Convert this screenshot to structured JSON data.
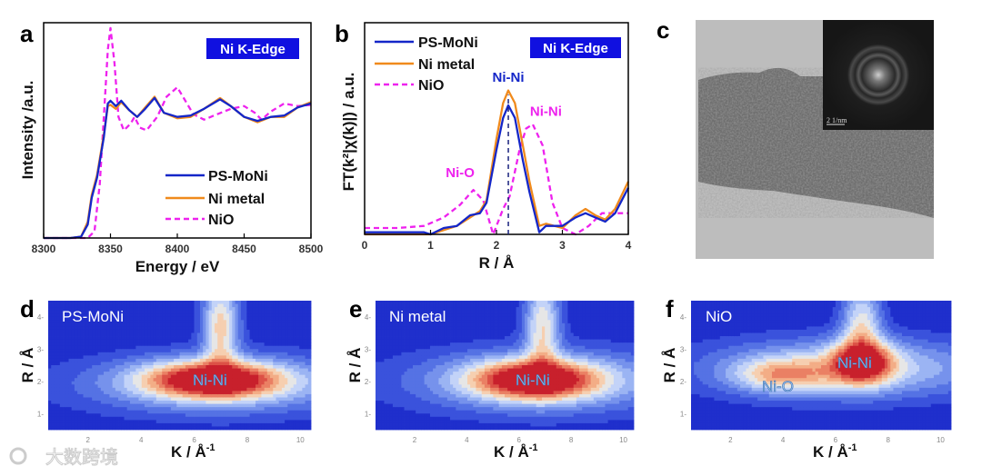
{
  "colors": {
    "ps_moni": "#1426c8",
    "ni_metal": "#f08a1c",
    "nio": "#ee22ee",
    "badge": "#1010e0"
  },
  "panels": {
    "a": "a",
    "b": "b",
    "c": "c",
    "d": "d",
    "e": "e",
    "f": "f"
  },
  "chart_data": [
    {
      "id": "a",
      "type": "line",
      "title": "Ni K-Edge",
      "xlabel": "Energy / eV",
      "ylabel": "Intensity /a.u.",
      "xlim": [
        8300,
        8500
      ],
      "ylim": [
        0,
        1.6
      ],
      "xticks": [
        "8300",
        "8350",
        "8400",
        "8450",
        "8500"
      ],
      "legend_position": "bottom-right",
      "series": [
        {
          "name": "PS-MoNi",
          "style": "solid",
          "x": [
            8300,
            8320,
            8328,
            8333,
            8336,
            8340,
            8345,
            8348,
            8350,
            8354,
            8358,
            8364,
            8370,
            8376,
            8383,
            8390,
            8400,
            8410,
            8420,
            8432,
            8440,
            8450,
            8460,
            8470,
            8480,
            8490,
            8500
          ],
          "y": [
            0,
            0,
            0.01,
            0.1,
            0.3,
            0.45,
            0.75,
            1.0,
            1.02,
            0.98,
            1.02,
            0.95,
            0.9,
            0.96,
            1.04,
            0.93,
            0.9,
            0.91,
            0.96,
            1.03,
            0.98,
            0.9,
            0.87,
            0.9,
            0.91,
            0.97,
            1.0
          ]
        },
        {
          "name": "Ni metal",
          "style": "solid",
          "x": [
            8300,
            8320,
            8328,
            8333,
            8336,
            8340,
            8345,
            8348,
            8350,
            8354,
            8358,
            8364,
            8370,
            8376,
            8383,
            8390,
            8400,
            8410,
            8420,
            8432,
            8440,
            8450,
            8460,
            8470,
            8480,
            8490,
            8500
          ],
          "y": [
            0,
            0,
            0.01,
            0.12,
            0.32,
            0.47,
            0.77,
            0.98,
            0.99,
            0.96,
            1.01,
            0.95,
            0.9,
            0.97,
            1.05,
            0.93,
            0.89,
            0.9,
            0.96,
            1.04,
            0.98,
            0.9,
            0.86,
            0.9,
            0.9,
            0.97,
            1.01
          ]
        },
        {
          "name": "NiO",
          "style": "dashed",
          "x": [
            8300,
            8333,
            8338,
            8342,
            8345,
            8348,
            8350,
            8353,
            8356,
            8360,
            8365,
            8368,
            8372,
            8377,
            8385,
            8392,
            8400,
            8406,
            8412,
            8420,
            8430,
            8440,
            8450,
            8458,
            8463,
            8470,
            8480,
            8490,
            8500
          ],
          "y": [
            0,
            0,
            0.05,
            0.4,
            0.9,
            1.4,
            1.56,
            1.3,
            0.9,
            0.8,
            0.85,
            0.9,
            0.82,
            0.8,
            0.9,
            1.05,
            1.12,
            1.02,
            0.92,
            0.88,
            0.92,
            0.96,
            0.98,
            0.93,
            0.88,
            0.94,
            1.0,
            0.98,
            0.99
          ]
        }
      ]
    },
    {
      "id": "b",
      "type": "line",
      "title": "Ni K-Edge",
      "xlabel": "R / Å",
      "ylabel": "FT(k²|χ(k)|) / a.u.",
      "xlim": [
        0,
        4
      ],
      "ylim": [
        0,
        1.0
      ],
      "xticks": [
        "0",
        "1",
        "2",
        "3",
        "4"
      ],
      "legend_position": "top-left",
      "annotations": [
        {
          "text": "Ni-Ni",
          "color": "#1426c8",
          "x": 2.18,
          "y": 0.72
        },
        {
          "text": "Ni-Ni",
          "color": "#ee22ee",
          "x": 2.75,
          "y": 0.56
        },
        {
          "text": "Ni-O",
          "color": "#ee22ee",
          "x": 1.45,
          "y": 0.27
        }
      ],
      "reference_line_x": 2.18,
      "series": [
        {
          "name": "PS-MoNi",
          "style": "solid",
          "x": [
            0,
            0.5,
            0.9,
            1.0,
            1.2,
            1.4,
            1.6,
            1.75,
            1.85,
            2.0,
            2.1,
            2.18,
            2.28,
            2.4,
            2.5,
            2.65,
            2.75,
            3.0,
            3.2,
            3.35,
            3.5,
            3.65,
            3.8,
            4.0
          ],
          "y": [
            0.01,
            0.01,
            0.01,
            0.0,
            0.03,
            0.04,
            0.09,
            0.1,
            0.15,
            0.4,
            0.55,
            0.61,
            0.55,
            0.35,
            0.2,
            0.01,
            0.04,
            0.04,
            0.08,
            0.1,
            0.08,
            0.06,
            0.1,
            0.22
          ]
        },
        {
          "name": "Ni metal",
          "style": "solid",
          "x": [
            0,
            0.5,
            0.9,
            1.0,
            1.2,
            1.4,
            1.6,
            1.75,
            1.85,
            2.0,
            2.1,
            2.18,
            2.28,
            2.4,
            2.5,
            2.65,
            2.75,
            3.0,
            3.2,
            3.35,
            3.5,
            3.65,
            3.8,
            4.0
          ],
          "y": [
            0.0,
            0.0,
            0.0,
            0.0,
            0.02,
            0.04,
            0.08,
            0.11,
            0.16,
            0.45,
            0.62,
            0.68,
            0.62,
            0.42,
            0.25,
            0.04,
            0.05,
            0.03,
            0.09,
            0.12,
            0.09,
            0.07,
            0.12,
            0.25
          ]
        },
        {
          "name": "NiO",
          "style": "dashed",
          "x": [
            0,
            0.5,
            0.9,
            1.2,
            1.45,
            1.65,
            1.8,
            1.95,
            2.1,
            2.2,
            2.35,
            2.45,
            2.55,
            2.7,
            2.85,
            3.0,
            3.2,
            3.4,
            3.6,
            3.8,
            4.0
          ],
          "y": [
            0.03,
            0.03,
            0.04,
            0.08,
            0.14,
            0.21,
            0.16,
            0.0,
            0.12,
            0.18,
            0.4,
            0.5,
            0.52,
            0.42,
            0.15,
            0.03,
            0.0,
            0.04,
            0.1,
            0.1,
            0.1
          ]
        }
      ]
    },
    {
      "id": "c",
      "type": "image",
      "inset_scale_bar": "2 1/nm"
    },
    {
      "id": "d",
      "type": "heatmap",
      "title": "PS-MoNi",
      "xlabel": "K / Å",
      "xlabel_sup": "-1",
      "ylabel": "R / Å",
      "xlim": [
        0.5,
        10.4
      ],
      "ylim": [
        0.5,
        4.5
      ],
      "xticks": [
        "2",
        "4",
        "6",
        "8",
        "10"
      ],
      "yticks": [
        "1",
        "2",
        "3",
        "4"
      ],
      "peak_labels": [
        "Ni-Ni"
      ],
      "features": [
        {
          "label": "Ni-Ni",
          "k": 6.7,
          "r": 2.05,
          "amplitude": 1.0,
          "k_width": 1.7,
          "r_width": 0.38
        },
        {
          "label": "ridge",
          "k": 7.0,
          "r": 3.7,
          "amplitude": 0.55,
          "k_width": 0.45,
          "r_width": 1.0
        },
        {
          "label": "band",
          "k": 7.0,
          "r": 1.9,
          "amplitude": 0.35,
          "k_width": 3.5,
          "r_width": 0.6
        }
      ]
    },
    {
      "id": "e",
      "type": "heatmap",
      "title": "Ni metal",
      "xlabel": "K / Å",
      "xlabel_sup": "-1",
      "ylabel": "R / Å",
      "xlim": [
        0.5,
        10.4
      ],
      "ylim": [
        0.5,
        4.5
      ],
      "xticks": [
        "2",
        "4",
        "6",
        "8",
        "10"
      ],
      "yticks": [
        "1",
        "2",
        "3",
        "4"
      ],
      "peak_labels": [
        "Ni-Ni"
      ],
      "features": [
        {
          "label": "Ni-Ni",
          "k": 6.6,
          "r": 2.05,
          "amplitude": 1.0,
          "k_width": 1.6,
          "r_width": 0.4
        },
        {
          "label": "ridge",
          "k": 6.9,
          "r": 3.7,
          "amplitude": 0.5,
          "k_width": 0.45,
          "r_width": 1.0
        },
        {
          "label": "band",
          "k": 7.0,
          "r": 2.0,
          "amplitude": 0.35,
          "k_width": 3.5,
          "r_width": 0.65
        }
      ]
    },
    {
      "id": "f",
      "type": "heatmap",
      "title": "NiO",
      "xlabel": "K / Å",
      "xlabel_sup": "-1",
      "ylabel": "R / Å",
      "xlim": [
        0.5,
        10.4
      ],
      "ylim": [
        0.5,
        4.5
      ],
      "xticks": [
        "2",
        "4",
        "6",
        "8",
        "10"
      ],
      "yticks": [
        "1",
        "2",
        "3",
        "4"
      ],
      "peak_labels": [
        "Ni-O",
        "Ni-Ni"
      ],
      "features": [
        {
          "label": "Ni-Ni",
          "k": 7.0,
          "r": 2.6,
          "amplitude": 0.85,
          "k_width": 0.8,
          "r_width": 0.45
        },
        {
          "label": "ridge",
          "k": 7.0,
          "r": 3.8,
          "amplitude": 0.45,
          "k_width": 0.5,
          "r_width": 0.8
        },
        {
          "label": "Ni-O",
          "k": 4.0,
          "r": 2.2,
          "amplitude": 0.45,
          "k_width": 1.2,
          "r_width": 0.35
        },
        {
          "label": "band",
          "k": 6.5,
          "r": 2.4,
          "amplitude": 0.42,
          "k_width": 3.5,
          "r_width": 0.6
        }
      ]
    }
  ],
  "watermark": "大数跨境"
}
